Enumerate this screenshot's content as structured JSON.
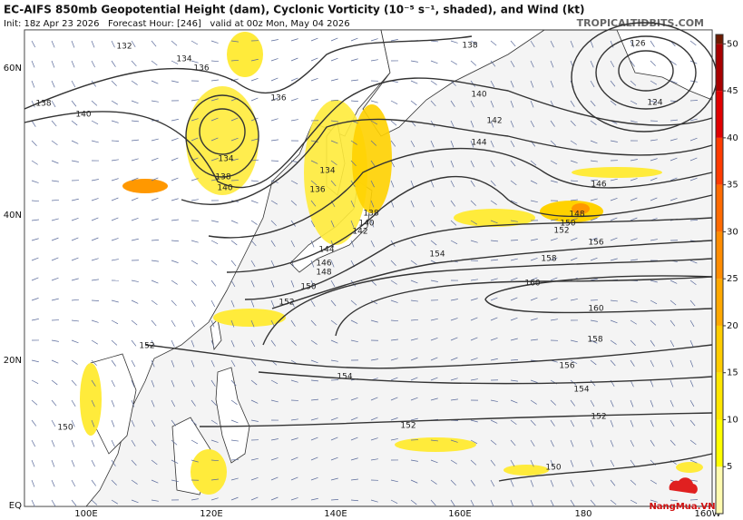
{
  "header": {
    "title": "EC-AIFS 850mb Geopotential Height (dam), Cyclonic Vorticity (10⁻⁵ s⁻¹, shaded), and Wind (kt)",
    "subtitle": "Init: 18z Apr 23 2026   Forecast Hour: [246]   valid at 00z Mon, May 04 2026",
    "site": "TROPICALTIDBITS.COM"
  },
  "map": {
    "lat_labels": [
      "60N",
      "40N",
      "20N",
      "EQ"
    ],
    "lon_labels": [
      "100E",
      "120E",
      "140E",
      "160E",
      "180",
      "160W"
    ],
    "contour_labels": [
      "134",
      "136",
      "132",
      "138",
      "140",
      "136",
      "134",
      "138",
      "140",
      "134",
      "136",
      "138",
      "126",
      "124",
      "140",
      "142",
      "144",
      "146",
      "148",
      "150",
      "152",
      "156",
      "158",
      "154",
      "160",
      "160",
      "158",
      "156",
      "154",
      "152",
      "154",
      "152",
      "150",
      "152",
      "150",
      "148",
      "146",
      "144",
      "142",
      "140",
      "138",
      "152",
      "150"
    ]
  },
  "colorbar": {
    "range": [
      0,
      51
    ],
    "ticks": [
      5,
      10,
      15,
      20,
      25,
      30,
      35,
      40,
      45,
      50
    ],
    "colors": [
      "#fffbb0",
      "#ffff00",
      "#ffe600",
      "#ffcc00",
      "#ffa800",
      "#ff8c00",
      "#ff6a00",
      "#ff3b00",
      "#e00000",
      "#a80000",
      "#6e1a00"
    ]
  },
  "watermark": "NangMua.VN"
}
